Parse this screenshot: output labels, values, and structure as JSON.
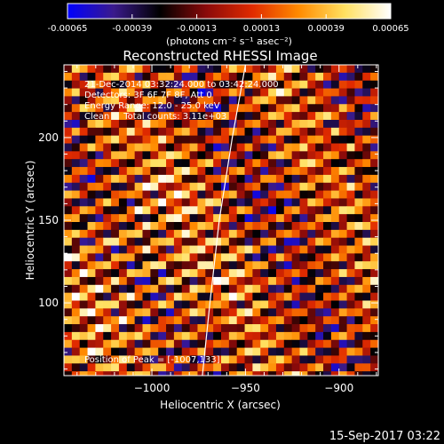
{
  "colorbar": {
    "tick_labels": [
      "-0.00065",
      "-0.00039",
      "-0.00013",
      "0.00013",
      "0.00039",
      "0.00065"
    ],
    "tick_values": [
      -0.00065,
      -0.00039,
      -0.00013,
      0.00013,
      0.00039,
      0.00065
    ],
    "range": [
      -0.00065,
      0.00065
    ],
    "unit_label": "(photons cm⁻² s⁻¹ asec⁻²)",
    "colors": [
      "#0000ff",
      "#3a1a8c",
      "#000000",
      "#8a0a0a",
      "#e02a00",
      "#ff8a00",
      "#ffe060",
      "#ffffff"
    ]
  },
  "chart_data": {
    "type": "heatmap",
    "title": "Reconstructed RHESSI Image",
    "xlabel": "Heliocentric X (arcsec)",
    "ylabel": "Heliocentric Y (arcsec)",
    "xlim": [
      -1047,
      -879
    ],
    "ylim": [
      56,
      244
    ],
    "x_ticks": [
      -1000,
      -950,
      -900
    ],
    "x_tick_labels": [
      "−1000",
      "−950",
      "−900"
    ],
    "y_ticks": [
      100,
      150,
      200
    ],
    "y_tick_labels": [
      "100",
      "150",
      "200"
    ],
    "annotations": [
      "21-Dec-2014 03:32:24.000 to 03:42:24.000",
      "Detectors: 3F 6F 7F 8F, Att 0",
      "Energy Range: 12.0 - 25.0 keV",
      "Clean     Total counts: 3.11e+03"
    ],
    "peak_label": "Position of Peak = [-1007,133]",
    "peak": [
      -1007,
      133
    ],
    "limb_curve": [
      [
        -973,
        56
      ],
      [
        -969,
        100
      ],
      [
        -964,
        150
      ],
      [
        -957,
        200
      ],
      [
        -950,
        244
      ]
    ]
  },
  "timestamp": "15-Sep-2017 03:22"
}
